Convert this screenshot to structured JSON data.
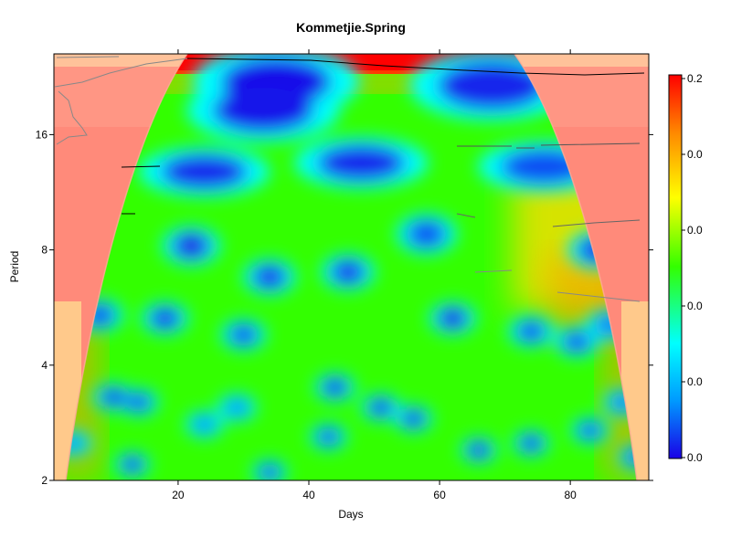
{
  "chart_data": {
    "type": "heatmap",
    "title": "Kommetjie.Spring",
    "xlabel": "Days",
    "ylabel": "Period",
    "xlim": [
      1,
      92
    ],
    "x_ticks": [
      20,
      40,
      60,
      80
    ],
    "y_scale": "log2",
    "ylim": [
      2,
      26
    ],
    "y_ticks": [
      2,
      4,
      8,
      16
    ],
    "colorbar": {
      "tick_labels": [
        "0.0",
        "0.0",
        "0.0",
        "0.0",
        "0.0",
        "0.2"
      ],
      "colors": [
        "#1a00e6",
        "#0099ff",
        "#00ffff",
        "#33ff00",
        "#ffff00",
        "#ff8800",
        "#ff0000"
      ]
    },
    "power_background": 0.42,
    "features": [
      {
        "x": 35,
        "period": 22,
        "power": 0.02
      },
      {
        "x": 33,
        "period": 18.5,
        "power": 0.03
      },
      {
        "x": 68,
        "period": 21.5,
        "power": 0.05
      },
      {
        "x": 24,
        "period": 12.8,
        "power": 0.05
      },
      {
        "x": 48,
        "period": 13.5,
        "power": 0.05
      },
      {
        "x": 76,
        "period": 13.2,
        "power": 0.1
      },
      {
        "x": 22,
        "period": 8.2,
        "power": 0.0
      },
      {
        "x": 34,
        "period": 6.8,
        "power": 0.06
      },
      {
        "x": 46,
        "period": 7,
        "power": 0.06
      },
      {
        "x": 58,
        "period": 8.8,
        "power": 0.1
      },
      {
        "x": 84,
        "period": 8.0,
        "power": 0.05
      },
      {
        "x": 8,
        "period": 5.4,
        "power": 0.08
      },
      {
        "x": 18,
        "period": 5.3,
        "power": 0.05
      },
      {
        "x": 30,
        "period": 4.8,
        "power": 0.1
      },
      {
        "x": 62,
        "period": 5.3,
        "power": 0.0
      },
      {
        "x": 74,
        "period": 4.9,
        "power": 0.1
      },
      {
        "x": 81,
        "period": 4.6,
        "power": 0.1
      },
      {
        "x": 86,
        "period": 5.1,
        "power": 0.15
      },
      {
        "x": 10,
        "period": 3.3,
        "power": 0.05
      },
      {
        "x": 14,
        "period": 3.2,
        "power": 0.1
      },
      {
        "x": 29,
        "period": 3.1,
        "power": 0.2
      },
      {
        "x": 24,
        "period": 2.8,
        "power": 0.2
      },
      {
        "x": 44,
        "period": 3.5,
        "power": 0.05
      },
      {
        "x": 51,
        "period": 3.1,
        "power": 0.05
      },
      {
        "x": 56,
        "period": 2.9,
        "power": 0.05
      },
      {
        "x": 43,
        "period": 2.6,
        "power": 0.1
      },
      {
        "x": 66,
        "period": 2.4,
        "power": 0.0
      },
      {
        "x": 74,
        "period": 2.5,
        "power": 0.05
      },
      {
        "x": 83,
        "period": 2.7,
        "power": 0.1
      },
      {
        "x": 88,
        "period": 3.2,
        "power": 0.15
      },
      {
        "x": 90,
        "period": 2.3,
        "power": 0.1
      },
      {
        "x": 13,
        "period": 2.2,
        "power": 0.05
      },
      {
        "x": 4,
        "period": 2.5,
        "power": 0.2
      },
      {
        "x": 34,
        "period": 2.1,
        "power": 0.1
      }
    ]
  }
}
